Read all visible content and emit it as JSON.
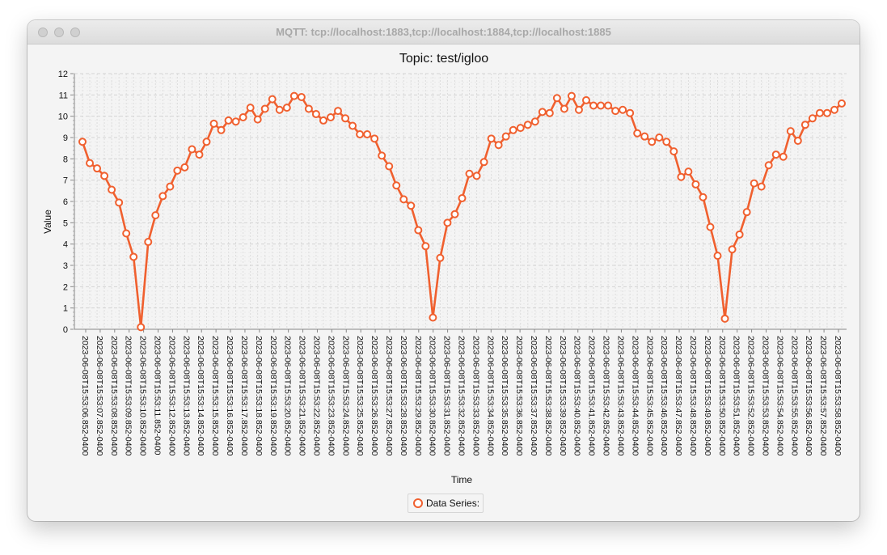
{
  "window": {
    "title": "MQTT: tcp://localhost:1883,tcp://localhost:1884,tcp://localhost:1885"
  },
  "colors": {
    "series": "#f0602f",
    "grid": "#dcdcdc",
    "background": "#f4f4f4"
  },
  "chart_data": {
    "type": "line",
    "title": "Topic: test/igloo",
    "xlabel": "Time",
    "ylabel": "Value",
    "ylim": [
      0,
      12
    ],
    "yticks": [
      0,
      1,
      2,
      3,
      4,
      5,
      6,
      7,
      8,
      9,
      10,
      11,
      12
    ],
    "grid": true,
    "legend_position": "bottom-center",
    "x_tick_labels": [
      "2023-06-08T15:53:06.852-0400",
      "2023-06-08T15:53:07.852-0400",
      "2023-06-08T15:53:08.852-0400",
      "2023-06-08T15:53:09.852-0400",
      "2023-06-08T15:53:10.852-0400",
      "2023-06-08T15:53:11.852-0400",
      "2023-06-08T15:53:12.852-0400",
      "2023-06-08T15:53:13.852-0400",
      "2023-06-08T15:53:14.852-0400",
      "2023-06-08T15:53:15.852-0400",
      "2023-06-08T15:53:16.852-0400",
      "2023-06-08T15:53:17.852-0400",
      "2023-06-08T15:53:18.852-0400",
      "2023-06-08T15:53:19.852-0400",
      "2023-06-08T15:53:20.852-0400",
      "2023-06-08T15:53:21.852-0400",
      "2023-06-08T15:53:22.852-0400",
      "2023-06-08T15:53:23.852-0400",
      "2023-06-08T15:53:24.852-0400",
      "2023-06-08T15:53:25.852-0400",
      "2023-06-08T15:53:26.852-0400",
      "2023-06-08T15:53:27.852-0400",
      "2023-06-08T15:53:28.852-0400",
      "2023-06-08T15:53:29.852-0400",
      "2023-06-08T15:53:30.852-0400",
      "2023-06-08T15:53:31.852-0400",
      "2023-06-08T15:53:32.852-0400",
      "2023-06-08T15:53:33.852-0400",
      "2023-06-08T15:53:34.852-0400",
      "2023-06-08T15:53:35.852-0400",
      "2023-06-08T15:53:36.852-0400",
      "2023-06-08T15:53:37.852-0400",
      "2023-06-08T15:53:38.852-0400",
      "2023-06-08T15:53:39.852-0400",
      "2023-06-08T15:53:40.852-0400",
      "2023-06-08T15:53:41.852-0400",
      "2023-06-08T15:53:42.852-0400",
      "2023-06-08T15:53:43.852-0400",
      "2023-06-08T15:53:44.852-0400",
      "2023-06-08T15:53:45.852-0400",
      "2023-06-08T15:53:46.852-0400",
      "2023-06-08T15:53:47.852-0400",
      "2023-06-08T15:53:48.852-0400",
      "2023-06-08T15:53:49.852-0400",
      "2023-06-08T15:53:50.852-0400",
      "2023-06-08T15:53:51.852-0400",
      "2023-06-08T15:53:52.852-0400",
      "2023-06-08T15:53:53.852-0400",
      "2023-06-08T15:53:54.852-0400",
      "2023-06-08T15:53:55.852-0400",
      "2023-06-08T15:53:56.852-0400",
      "2023-06-08T15:53:57.852-0400",
      "2023-06-08T15:53:58.852-0400"
    ],
    "series": [
      {
        "name": "Data Series:",
        "values": [
          8.8,
          7.8,
          7.55,
          7.2,
          6.55,
          5.95,
          4.5,
          3.4,
          0.1,
          4.1,
          5.35,
          6.25,
          6.7,
          7.45,
          7.6,
          8.45,
          8.2,
          8.8,
          9.65,
          9.35,
          9.8,
          9.75,
          9.95,
          10.4,
          9.85,
          10.35,
          10.8,
          10.3,
          10.4,
          10.95,
          10.9,
          10.35,
          10.1,
          9.8,
          9.95,
          10.25,
          9.9,
          9.55,
          9.15,
          9.15,
          8.95,
          8.15,
          7.65,
          6.75,
          6.1,
          5.8,
          4.65,
          3.9,
          0.55,
          3.35,
          5.0,
          5.4,
          6.15,
          7.3,
          7.2,
          7.85,
          8.95,
          8.65,
          9.05,
          9.35,
          9.45,
          9.6,
          9.75,
          10.2,
          10.15,
          10.85,
          10.35,
          10.95,
          10.3,
          10.75,
          10.5,
          10.5,
          10.5,
          10.25,
          10.3,
          10.15,
          9.2,
          9.05,
          8.8,
          9.0,
          8.8,
          8.35,
          7.15,
          7.4,
          6.8,
          6.2,
          4.8,
          3.45,
          0.5,
          3.75,
          4.45,
          5.5,
          6.85,
          6.7,
          7.7,
          8.2,
          8.1,
          9.3,
          8.85,
          9.6,
          9.9,
          10.15,
          10.15,
          10.3,
          10.6
        ]
      }
    ]
  }
}
